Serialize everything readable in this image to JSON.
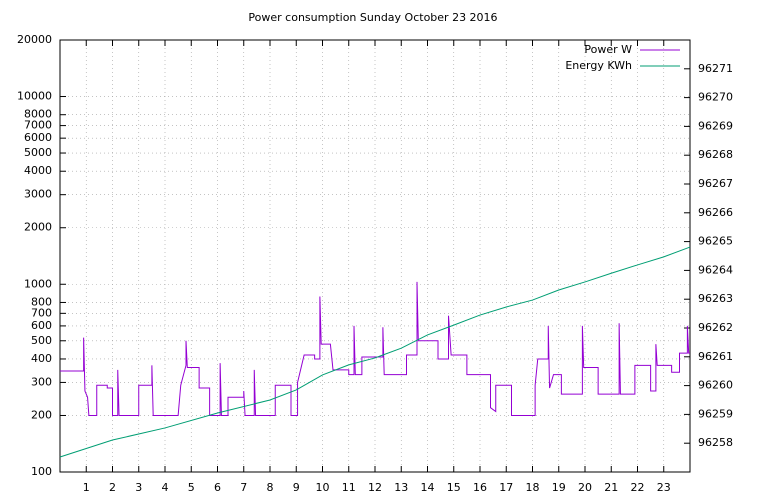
{
  "chart_data": {
    "type": "line",
    "title": "Power consumption Sunday October 23 2016",
    "ylog": true,
    "grid": true,
    "legend": "top-right",
    "xlim": [
      0,
      24
    ],
    "xticks": [
      1,
      2,
      3,
      4,
      5,
      6,
      7,
      8,
      9,
      10,
      11,
      12,
      13,
      14,
      15,
      16,
      17,
      18,
      19,
      20,
      21,
      22,
      23
    ],
    "ylim": [
      100,
      20000
    ],
    "yticks": [
      100,
      200,
      300,
      400,
      500,
      600,
      700,
      800,
      1000,
      2000,
      3000,
      4000,
      5000,
      6000,
      7000,
      8000,
      10000,
      20000
    ],
    "y2lim": [
      96257,
      96272
    ],
    "y2ticks": [
      96258,
      96259,
      96260,
      96261,
      96262,
      96263,
      96264,
      96265,
      96266,
      96267,
      96268,
      96269,
      96270,
      96271
    ],
    "series": [
      {
        "name": "Power W",
        "color": "#9400d3",
        "x": [
          0,
          0.9,
          0.9,
          0.95,
          1.05,
          1.1,
          1.4,
          1.4,
          1.8,
          1.8,
          2.0,
          2.0,
          2.2,
          2.2,
          2.25,
          3.0,
          3.0,
          3.5,
          3.5,
          3.55,
          4.5,
          4.6,
          4.8,
          4.8,
          4.85,
          5.3,
          5.3,
          5.7,
          5.7,
          6.1,
          6.1,
          6.15,
          6.4,
          6.4,
          7.0,
          7.0,
          7.05,
          7.4,
          7.4,
          7.45,
          8.2,
          8.2,
          8.8,
          8.8,
          9.05,
          9.05,
          9.3,
          9.7,
          9.7,
          9.9,
          9.9,
          9.95,
          10.3,
          10.4,
          11.0,
          11.0,
          11.2,
          11.2,
          11.25,
          11.5,
          11.5,
          12.3,
          12.3,
          12.35,
          13.2,
          13.2,
          13.6,
          13.6,
          13.65,
          14.4,
          14.4,
          14.8,
          14.8,
          14.9,
          15.5,
          15.5,
          16.4,
          16.4,
          16.6,
          16.6,
          17.2,
          17.2,
          17.4,
          18.1,
          18.1,
          18.2,
          18.6,
          18.6,
          18.65,
          18.8,
          19.1,
          19.1,
          19.9,
          19.9,
          19.95,
          20.5,
          20.5,
          21.3,
          21.3,
          21.35,
          21.9,
          21.9,
          22.5,
          22.5,
          22.7,
          22.7,
          22.75,
          23.3,
          23.3,
          23.6,
          23.6,
          23.9,
          23.9,
          23.95,
          24
        ],
        "values": [
          345,
          345,
          520,
          270,
          250,
          200,
          200,
          290,
          290,
          280,
          280,
          200,
          200,
          350,
          200,
          200,
          290,
          290,
          370,
          200,
          200,
          290,
          370,
          500,
          360,
          360,
          280,
          280,
          200,
          200,
          380,
          200,
          200,
          250,
          250,
          270,
          200,
          200,
          350,
          200,
          200,
          290,
          290,
          200,
          200,
          300,
          420,
          420,
          400,
          400,
          860,
          480,
          480,
          350,
          350,
          330,
          330,
          600,
          330,
          330,
          410,
          410,
          590,
          330,
          330,
          420,
          420,
          1030,
          500,
          500,
          400,
          400,
          680,
          420,
          420,
          330,
          330,
          220,
          210,
          290,
          290,
          200,
          200,
          200,
          290,
          400,
          400,
          600,
          280,
          330,
          330,
          260,
          260,
          600,
          360,
          360,
          260,
          260,
          620,
          260,
          260,
          370,
          370,
          270,
          270,
          480,
          370,
          370,
          340,
          340,
          430,
          430,
          600,
          430,
          430
        ]
      },
      {
        "name": "Energy KWh",
        "color": "#009e73",
        "axis": "y2",
        "x": [
          0,
          2,
          4,
          6,
          8,
          9,
          10,
          11,
          12,
          13,
          14,
          15,
          16,
          17,
          18,
          19,
          20,
          21,
          22,
          23,
          24
        ],
        "values": [
          96257.52,
          96258.11,
          96258.53,
          96259.05,
          96259.5,
          96259.85,
          96260.37,
          96260.72,
          96260.96,
          96261.3,
          96261.76,
          96262.1,
          96262.45,
          96262.73,
          96262.97,
          96263.32,
          96263.6,
          96263.9,
          96264.19,
          96264.47,
          96264.81
        ]
      }
    ]
  }
}
